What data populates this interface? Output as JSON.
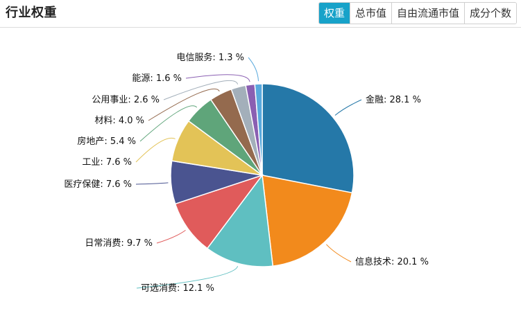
{
  "header": {
    "title": "行业权重",
    "tabs": [
      {
        "label": "权重",
        "active": true
      },
      {
        "label": "总市值",
        "active": false
      },
      {
        "label": "自由流通市值",
        "active": false
      },
      {
        "label": "成分个数",
        "active": false
      }
    ],
    "accent": "#17a2c9"
  },
  "chart_data": {
    "type": "pie",
    "unit": "%",
    "slices": [
      {
        "label": "金融",
        "value": 28.1,
        "color": "#2578a8"
      },
      {
        "label": "信息技术",
        "value": 20.1,
        "color": "#f28a1c"
      },
      {
        "label": "可选消费",
        "value": 12.1,
        "color": "#5fbfc1"
      },
      {
        "label": "日常消费",
        "value": 9.7,
        "color": "#e05b5b"
      },
      {
        "label": "医疗保健",
        "value": 7.6,
        "color": "#4a5490"
      },
      {
        "label": "工业",
        "value": 7.6,
        "color": "#e3c357"
      },
      {
        "label": "房地产",
        "value": 5.4,
        "color": "#5fa57a"
      },
      {
        "label": "材料",
        "value": 4.0,
        "color": "#946a4e"
      },
      {
        "label": "公用事业",
        "value": 2.6,
        "color": "#a3afba"
      },
      {
        "label": "能源",
        "value": 1.6,
        "color": "#8a5fb2"
      },
      {
        "label": "电信服务",
        "value": 1.3,
        "color": "#59a9dd"
      }
    ],
    "start_angle": "top",
    "direction": "clockwise",
    "legend": "none"
  }
}
